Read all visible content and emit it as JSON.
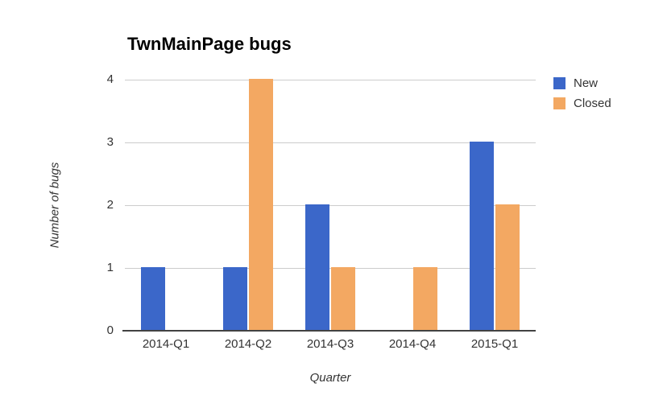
{
  "page": {
    "background": "#FFFFFF"
  },
  "chart_data": {
    "type": "bar",
    "title": "TwnMainPage bugs",
    "xlabel": "Quarter",
    "ylabel": "Number of bugs",
    "categories": [
      "2014-Q1",
      "2014-Q2",
      "2014-Q3",
      "2014-Q4",
      "2015-Q1"
    ],
    "series": [
      {
        "name": "New",
        "color": "#3B67C9",
        "values": [
          1,
          1,
          2,
          0,
          3
        ]
      },
      {
        "name": "Closed",
        "color": "#F3A862",
        "values": [
          0,
          4,
          1,
          1,
          2
        ]
      }
    ],
    "ylim": [
      0,
      4
    ],
    "yticks": [
      0,
      1,
      2,
      3,
      4
    ],
    "grid": true,
    "legend_position": "right",
    "colors": {
      "gridline": "#CCCCCC",
      "axis_line": "#424242",
      "tick_text": "#333333",
      "title_text": "#000000"
    }
  }
}
